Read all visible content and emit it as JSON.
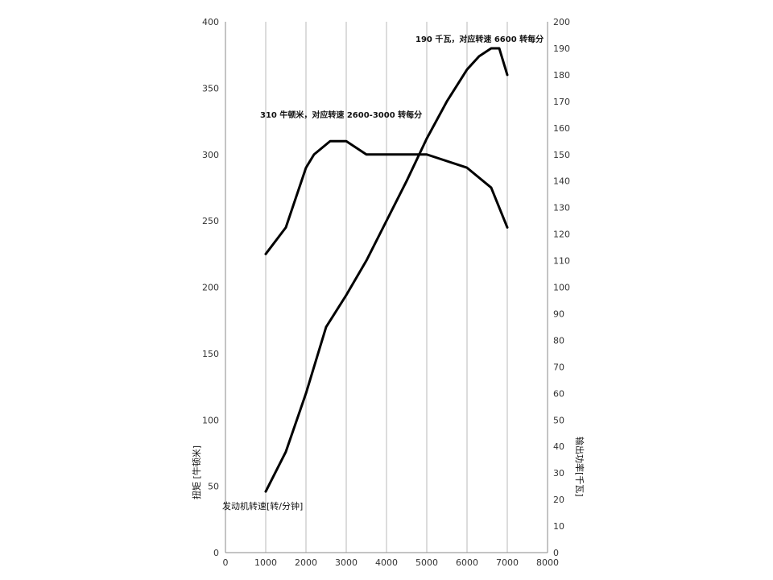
{
  "chart_data": {
    "type": "line",
    "xlabel": "发动机转速[转/分钟]",
    "ylabel_left": "扭矩 [牛顿米]",
    "ylabel_right": "输出功率[千瓦]",
    "xlim": [
      0,
      8000
    ],
    "ylim_left": [
      0,
      400
    ],
    "ylim_right": [
      0,
      200
    ],
    "x_ticks": [
      0,
      1000,
      2000,
      3000,
      4000,
      5000,
      6000,
      7000,
      8000
    ],
    "y_left_ticks": [
      0,
      50,
      100,
      150,
      200,
      250,
      300,
      350,
      400
    ],
    "y_right_ticks": [
      0,
      10,
      20,
      30,
      40,
      50,
      60,
      70,
      80,
      90,
      100,
      110,
      120,
      130,
      140,
      150,
      160,
      170,
      180,
      190,
      200
    ],
    "grid": "vertical",
    "series": [
      {
        "axis": "left",
        "color": "#000000",
        "x": [
          1000,
          1500,
          2000,
          2200,
          2600,
          3000,
          3500,
          4000,
          5000,
          6000,
          6600,
          7000
        ],
        "y": [
          225,
          245,
          290,
          300,
          310,
          310,
          300,
          300,
          300,
          290,
          275,
          245
        ]
      },
      {
        "axis": "right",
        "color": "#000000",
        "x": [
          1000,
          1500,
          2000,
          2500,
          3000,
          3500,
          4000,
          4500,
          5000,
          5500,
          6000,
          6300,
          6600,
          6800,
          7000
        ],
        "y": [
          23,
          38,
          60,
          85,
          97,
          110,
          125,
          140,
          156,
          170,
          182,
          187,
          190,
          190,
          180
        ]
      }
    ],
    "annotations": [
      {
        "text": "190 千瓦，对应转速 6600 转每分"
      },
      {
        "text": "310 牛顿米，对应转速 2600-3000 转每分"
      }
    ]
  }
}
